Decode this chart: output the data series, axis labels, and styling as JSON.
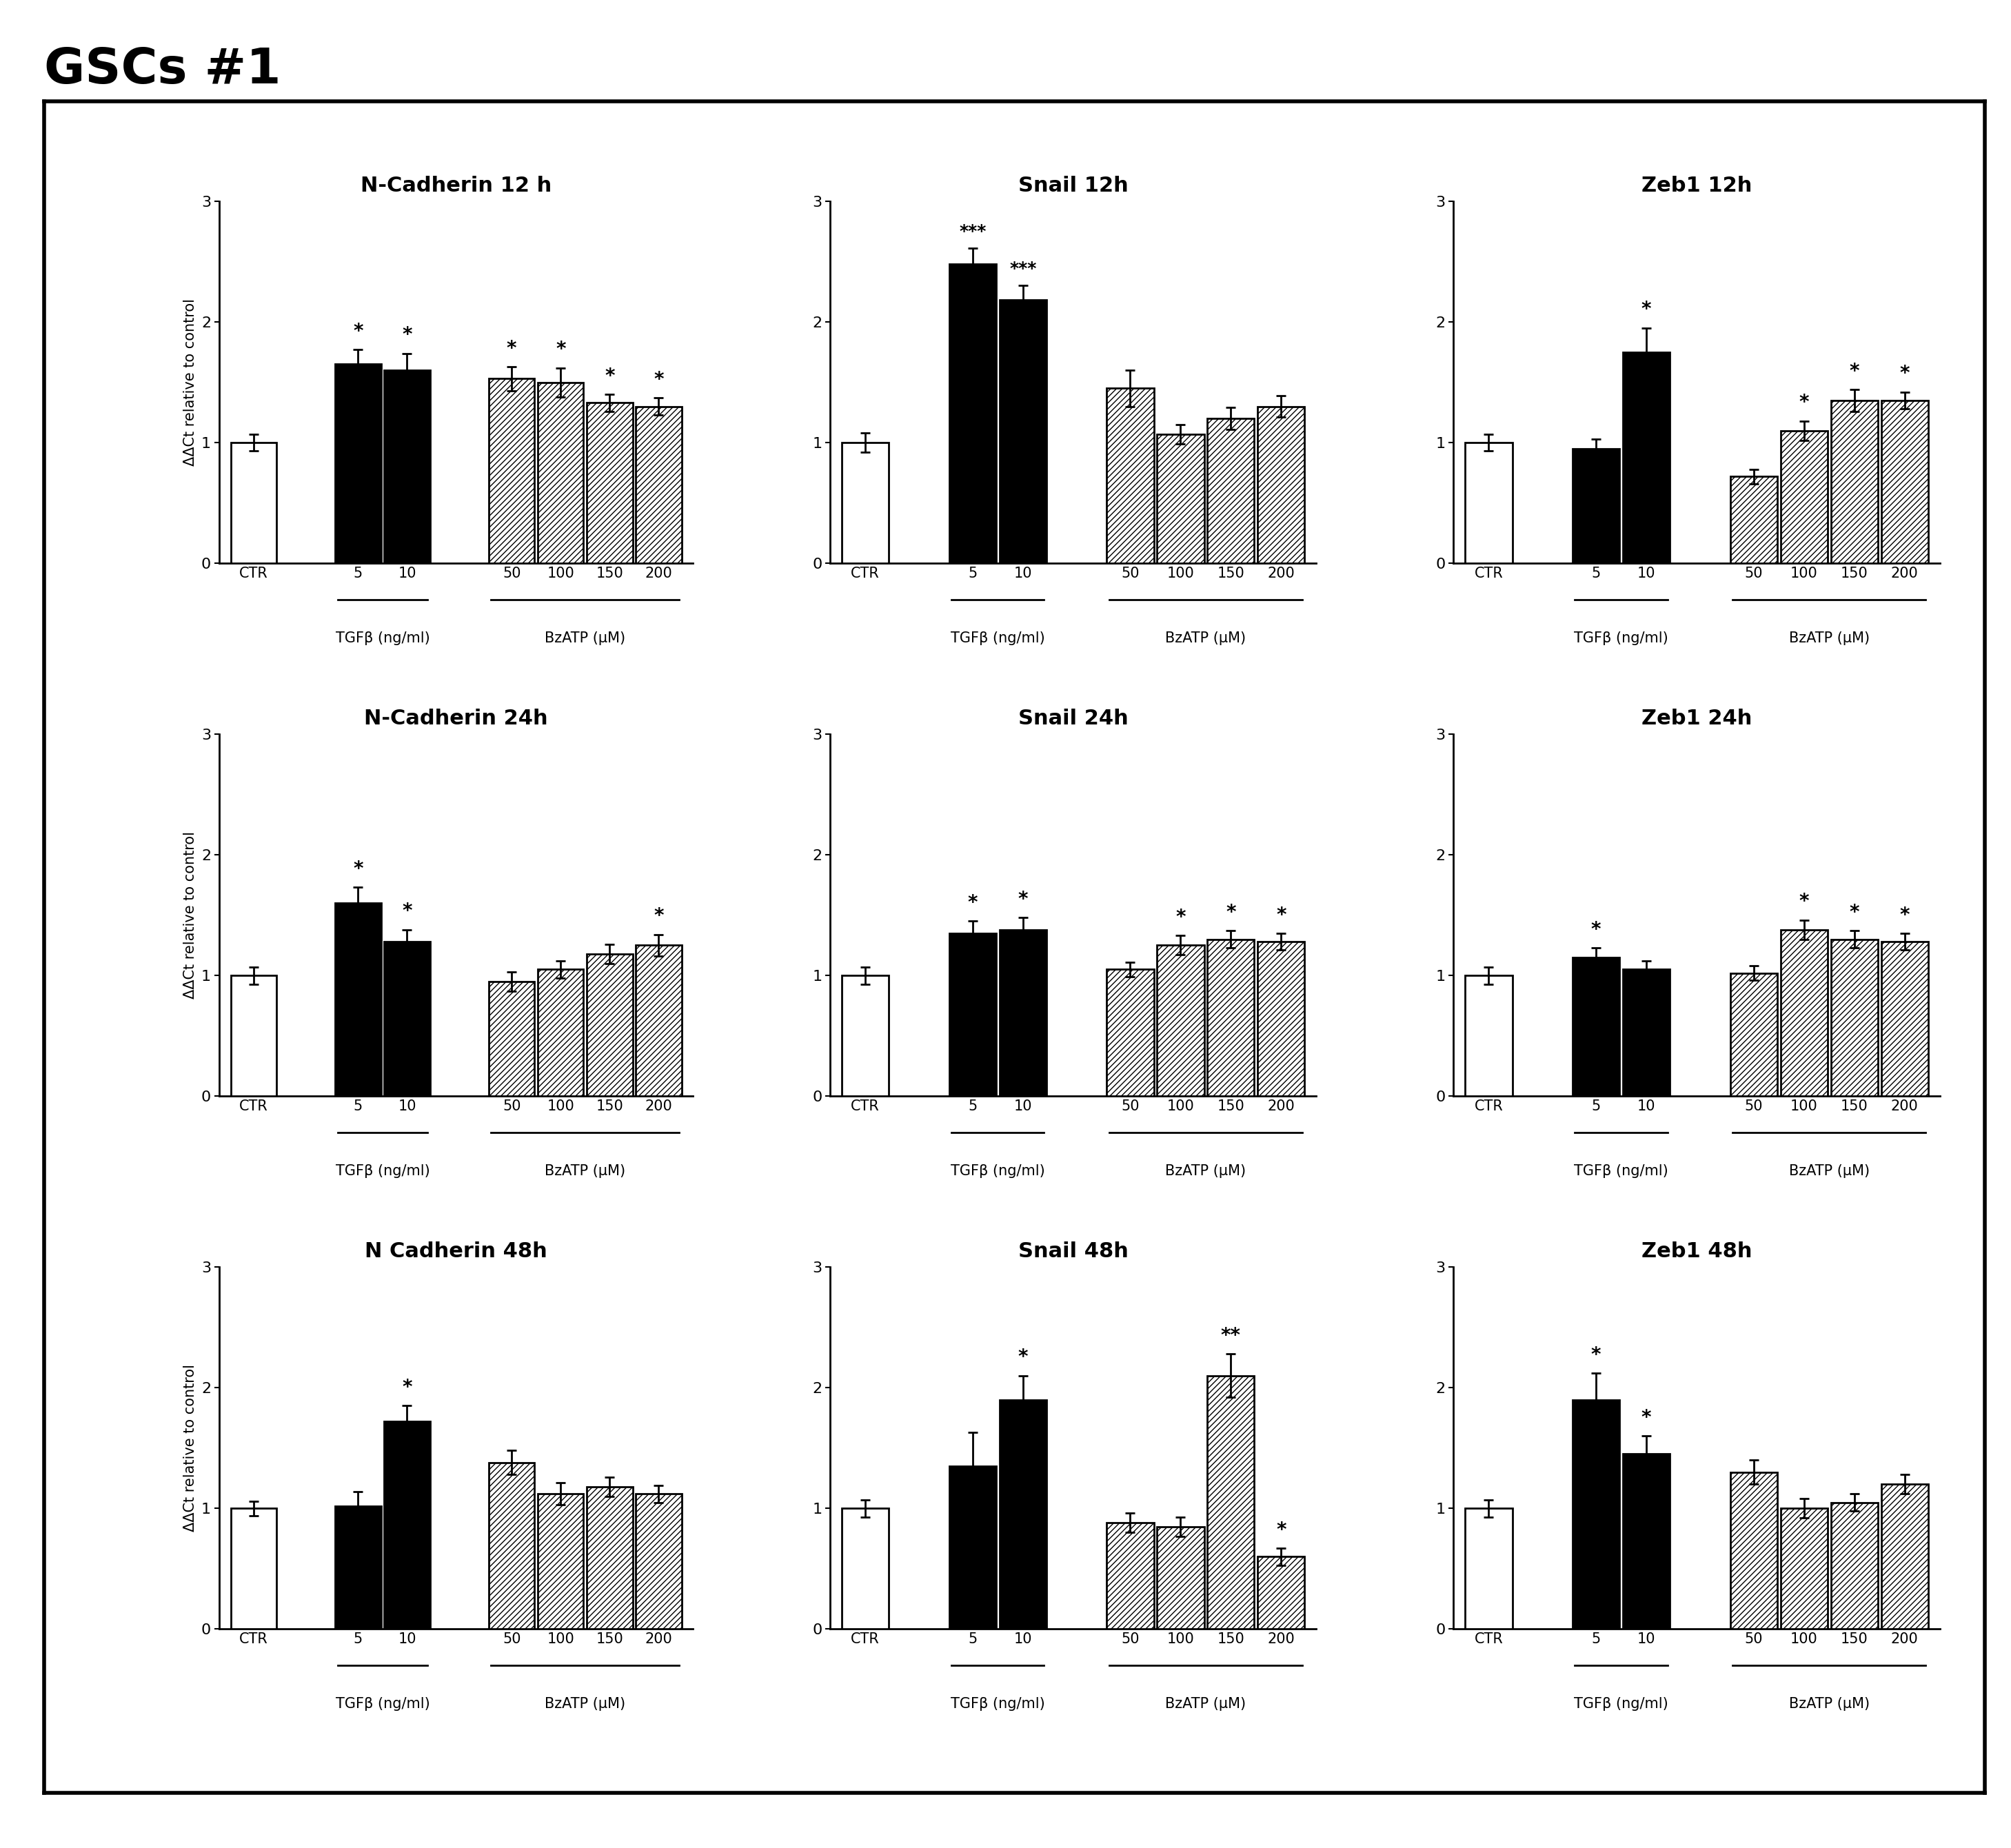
{
  "suptitle": "GSCs #1",
  "ylabel": "ΔΔCt relative to control",
  "ylim": [
    0,
    3
  ],
  "yticks": [
    0,
    1,
    2,
    3
  ],
  "subplots": [
    {
      "title": "N-Cadherin 12 h",
      "row": 0,
      "col": 0,
      "bars": [
        {
          "label": "CTR",
          "value": 1.0,
          "err": 0.07,
          "style": "white",
          "sig": ""
        },
        {
          "label": "5",
          "value": 1.65,
          "err": 0.12,
          "style": "black",
          "sig": "*"
        },
        {
          "label": "10",
          "value": 1.6,
          "err": 0.14,
          "style": "black",
          "sig": "*"
        },
        {
          "label": "50",
          "value": 1.53,
          "err": 0.1,
          "style": "hatch",
          "sig": "*"
        },
        {
          "label": "100",
          "value": 1.5,
          "err": 0.12,
          "style": "hatch",
          "sig": "*"
        },
        {
          "label": "150",
          "value": 1.33,
          "err": 0.07,
          "style": "hatch",
          "sig": "*"
        },
        {
          "label": "200",
          "value": 1.3,
          "err": 0.07,
          "style": "hatch",
          "sig": "*"
        }
      ],
      "groups": [
        {
          "label": "TGFβ (ng/ml)",
          "indices": [
            1,
            2
          ]
        },
        {
          "label": "BzATP (μM)",
          "indices": [
            3,
            4,
            5,
            6
          ]
        }
      ]
    },
    {
      "title": "Snail 12h",
      "row": 0,
      "col": 1,
      "bars": [
        {
          "label": "CTR",
          "value": 1.0,
          "err": 0.08,
          "style": "white",
          "sig": ""
        },
        {
          "label": "5",
          "value": 2.48,
          "err": 0.13,
          "style": "black",
          "sig": "***"
        },
        {
          "label": "10",
          "value": 2.18,
          "err": 0.12,
          "style": "black",
          "sig": "***"
        },
        {
          "label": "50",
          "value": 1.45,
          "err": 0.15,
          "style": "hatch",
          "sig": ""
        },
        {
          "label": "100",
          "value": 1.07,
          "err": 0.08,
          "style": "hatch",
          "sig": ""
        },
        {
          "label": "150",
          "value": 1.2,
          "err": 0.09,
          "style": "hatch",
          "sig": ""
        },
        {
          "label": "200",
          "value": 1.3,
          "err": 0.09,
          "style": "hatch",
          "sig": ""
        }
      ],
      "groups": [
        {
          "label": "TGFβ (ng/ml)",
          "indices": [
            1,
            2
          ]
        },
        {
          "label": "BzATP (μM)",
          "indices": [
            3,
            4,
            5,
            6
          ]
        }
      ]
    },
    {
      "title": "Zeb1 12h",
      "row": 0,
      "col": 2,
      "bars": [
        {
          "label": "CTR",
          "value": 1.0,
          "err": 0.07,
          "style": "white",
          "sig": ""
        },
        {
          "label": "5",
          "value": 0.95,
          "err": 0.08,
          "style": "black",
          "sig": ""
        },
        {
          "label": "10",
          "value": 1.75,
          "err": 0.2,
          "style": "black",
          "sig": "*"
        },
        {
          "label": "50",
          "value": 0.72,
          "err": 0.06,
          "style": "hatch",
          "sig": ""
        },
        {
          "label": "100",
          "value": 1.1,
          "err": 0.08,
          "style": "hatch",
          "sig": "*"
        },
        {
          "label": "150",
          "value": 1.35,
          "err": 0.09,
          "style": "hatch",
          "sig": "*"
        },
        {
          "label": "200",
          "value": 1.35,
          "err": 0.07,
          "style": "hatch",
          "sig": "*"
        }
      ],
      "groups": [
        {
          "label": "TGFβ (ng/ml)",
          "indices": [
            1,
            2
          ]
        },
        {
          "label": "BzATP (μM)",
          "indices": [
            3,
            4,
            5,
            6
          ]
        }
      ]
    },
    {
      "title": "N-Cadherin 24h",
      "row": 1,
      "col": 0,
      "bars": [
        {
          "label": "CTR",
          "value": 1.0,
          "err": 0.07,
          "style": "white",
          "sig": ""
        },
        {
          "label": "5",
          "value": 1.6,
          "err": 0.13,
          "style": "black",
          "sig": "*"
        },
        {
          "label": "10",
          "value": 1.28,
          "err": 0.1,
          "style": "black",
          "sig": "*"
        },
        {
          "label": "50",
          "value": 0.95,
          "err": 0.08,
          "style": "hatch",
          "sig": ""
        },
        {
          "label": "100",
          "value": 1.05,
          "err": 0.07,
          "style": "hatch",
          "sig": ""
        },
        {
          "label": "150",
          "value": 1.18,
          "err": 0.08,
          "style": "hatch",
          "sig": ""
        },
        {
          "label": "200",
          "value": 1.25,
          "err": 0.09,
          "style": "hatch",
          "sig": "*"
        }
      ],
      "groups": [
        {
          "label": "TGFβ (ng/ml)",
          "indices": [
            1,
            2
          ]
        },
        {
          "label": "BzATP (μM)",
          "indices": [
            3,
            4,
            5,
            6
          ]
        }
      ]
    },
    {
      "title": "Snail 24h",
      "row": 1,
      "col": 1,
      "bars": [
        {
          "label": "CTR",
          "value": 1.0,
          "err": 0.07,
          "style": "white",
          "sig": ""
        },
        {
          "label": "5",
          "value": 1.35,
          "err": 0.1,
          "style": "black",
          "sig": "*"
        },
        {
          "label": "10",
          "value": 1.38,
          "err": 0.1,
          "style": "black",
          "sig": "*"
        },
        {
          "label": "50",
          "value": 1.05,
          "err": 0.06,
          "style": "hatch",
          "sig": ""
        },
        {
          "label": "100",
          "value": 1.25,
          "err": 0.08,
          "style": "hatch",
          "sig": "*"
        },
        {
          "label": "150",
          "value": 1.3,
          "err": 0.07,
          "style": "hatch",
          "sig": "*"
        },
        {
          "label": "200",
          "value": 1.28,
          "err": 0.07,
          "style": "hatch",
          "sig": "*"
        }
      ],
      "groups": [
        {
          "label": "TGFβ (ng/ml)",
          "indices": [
            1,
            2
          ]
        },
        {
          "label": "BzATP (μM)",
          "indices": [
            3,
            4,
            5,
            6
          ]
        }
      ]
    },
    {
      "title": "Zeb1 24h",
      "row": 1,
      "col": 2,
      "bars": [
        {
          "label": "CTR",
          "value": 1.0,
          "err": 0.07,
          "style": "white",
          "sig": ""
        },
        {
          "label": "5",
          "value": 1.15,
          "err": 0.08,
          "style": "black",
          "sig": "*"
        },
        {
          "label": "10",
          "value": 1.05,
          "err": 0.07,
          "style": "black",
          "sig": ""
        },
        {
          "label": "50",
          "value": 1.02,
          "err": 0.06,
          "style": "hatch",
          "sig": ""
        },
        {
          "label": "100",
          "value": 1.38,
          "err": 0.08,
          "style": "hatch",
          "sig": "*"
        },
        {
          "label": "150",
          "value": 1.3,
          "err": 0.07,
          "style": "hatch",
          "sig": "*"
        },
        {
          "label": "200",
          "value": 1.28,
          "err": 0.07,
          "style": "hatch",
          "sig": "*"
        }
      ],
      "groups": [
        {
          "label": "TGFβ (ng/ml)",
          "indices": [
            1,
            2
          ]
        },
        {
          "label": "BzATP (μM)",
          "indices": [
            3,
            4,
            5,
            6
          ]
        }
      ]
    },
    {
      "title": "N Cadherin 48h",
      "row": 2,
      "col": 0,
      "bars": [
        {
          "label": "CTR",
          "value": 1.0,
          "err": 0.06,
          "style": "white",
          "sig": ""
        },
        {
          "label": "5",
          "value": 1.02,
          "err": 0.12,
          "style": "black",
          "sig": ""
        },
        {
          "label": "10",
          "value": 1.72,
          "err": 0.13,
          "style": "black",
          "sig": "*"
        },
        {
          "label": "50",
          "value": 1.38,
          "err": 0.1,
          "style": "hatch",
          "sig": ""
        },
        {
          "label": "100",
          "value": 1.12,
          "err": 0.09,
          "style": "hatch",
          "sig": ""
        },
        {
          "label": "150",
          "value": 1.18,
          "err": 0.08,
          "style": "hatch",
          "sig": ""
        },
        {
          "label": "200",
          "value": 1.12,
          "err": 0.07,
          "style": "hatch",
          "sig": ""
        }
      ],
      "groups": [
        {
          "label": "TGFβ (ng/ml)",
          "indices": [
            1,
            2
          ]
        },
        {
          "label": "BzATP (μM)",
          "indices": [
            3,
            4,
            5,
            6
          ]
        }
      ]
    },
    {
      "title": "Snail 48h",
      "row": 2,
      "col": 1,
      "bars": [
        {
          "label": "CTR",
          "value": 1.0,
          "err": 0.07,
          "style": "white",
          "sig": ""
        },
        {
          "label": "5",
          "value": 1.35,
          "err": 0.28,
          "style": "black",
          "sig": ""
        },
        {
          "label": "10",
          "value": 1.9,
          "err": 0.2,
          "style": "black",
          "sig": "*"
        },
        {
          "label": "50",
          "value": 0.88,
          "err": 0.08,
          "style": "hatch",
          "sig": ""
        },
        {
          "label": "100",
          "value": 0.85,
          "err": 0.08,
          "style": "hatch",
          "sig": ""
        },
        {
          "label": "150",
          "value": 2.1,
          "err": 0.18,
          "style": "hatch",
          "sig": "**"
        },
        {
          "label": "200",
          "value": 0.6,
          "err": 0.07,
          "style": "hatch",
          "sig": "*"
        }
      ],
      "groups": [
        {
          "label": "TGFβ (ng/ml)",
          "indices": [
            1,
            2
          ]
        },
        {
          "label": "BzATP (μM)",
          "indices": [
            3,
            4,
            5,
            6
          ]
        }
      ]
    },
    {
      "title": "Zeb1 48h",
      "row": 2,
      "col": 2,
      "bars": [
        {
          "label": "CTR",
          "value": 1.0,
          "err": 0.07,
          "style": "white",
          "sig": ""
        },
        {
          "label": "5",
          "value": 1.9,
          "err": 0.22,
          "style": "black",
          "sig": "*"
        },
        {
          "label": "10",
          "value": 1.45,
          "err": 0.15,
          "style": "black",
          "sig": "*"
        },
        {
          "label": "50",
          "value": 1.3,
          "err": 0.1,
          "style": "hatch",
          "sig": ""
        },
        {
          "label": "100",
          "value": 1.0,
          "err": 0.08,
          "style": "hatch",
          "sig": ""
        },
        {
          "label": "150",
          "value": 1.05,
          "err": 0.07,
          "style": "hatch",
          "sig": ""
        },
        {
          "label": "200",
          "value": 1.2,
          "err": 0.08,
          "style": "hatch",
          "sig": ""
        }
      ],
      "groups": [
        {
          "label": "TGFβ (ng/ml)",
          "indices": [
            1,
            2
          ]
        },
        {
          "label": "BzATP (μM)",
          "indices": [
            3,
            4,
            5,
            6
          ]
        }
      ]
    }
  ]
}
